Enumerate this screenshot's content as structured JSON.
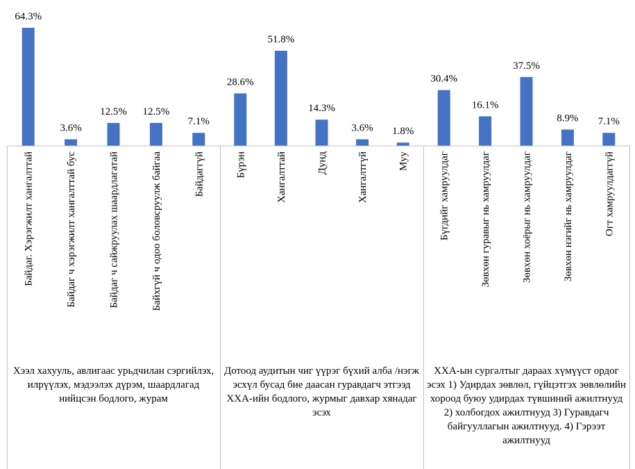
{
  "chart_data": {
    "type": "bar",
    "ylim": [
      0,
      70
    ],
    "bar_color": "#4472C4",
    "groups": [
      {
        "label": "Хээл хахууль, авлигаас урьдчилан сэргийлэх, илрүүлэх, мэдээлэх дүрэм, шаардлагад нийцсэн бодлого, журам",
        "categories": [
          "Байдаг. Хэрэгжилт хангалттай",
          "Байдаг ч хэрэгжилт хангалттай бус",
          "Байдаг ч сайжруулах шаардлагатай",
          "Байхгүй ч одоо боловсруулж байгаа",
          "Байдаггүй"
        ],
        "values": [
          64.3,
          3.6,
          12.5,
          12.5,
          7.1
        ],
        "labels": [
          "64.3%",
          "3.6%",
          "12.5%",
          "12.5%",
          "7.1%"
        ]
      },
      {
        "label": "Дотоод аудитын чиг үүрэг бүхий алба /нэгж эсхүл бусад бие даасан гуравдагч этгээд ХХА-ийн бодлого, журмыг давхар хянадаг эсэх",
        "categories": [
          "Бүрэн",
          "Хангалттай",
          "Дунд",
          "Хангалтгүй",
          "Муу"
        ],
        "values": [
          28.6,
          51.8,
          14.3,
          3.6,
          1.8
        ],
        "labels": [
          "28.6%",
          "51.8%",
          "14.3%",
          "3.6%",
          "1.8%"
        ]
      },
      {
        "label": "ХХА-ын сургалтыг дараах хүмүүст ордог эсэх 1) Удирдах зөвлөл, гүйцэтгэх зөвлөлийн хороод буюу удирдах түвшиний ажилтнууд 2) холбогдох ажилтнууд 3) Гуравдагч байгууллагын ажилтнууд. 4) Гэрээт ажилтнууд",
        "categories": [
          "Бүгдийг хамруулдаг",
          "Зөвхөн гуравыг нь хамруулдаг",
          "Зөвхөн хоёрыг нь хамруулдаг",
          "Зөвхөн нэгийг нь хамруулдаг",
          "Огт хамруулдаггүй"
        ],
        "values": [
          30.4,
          16.1,
          37.5,
          8.9,
          7.1
        ],
        "labels": [
          "30.4%",
          "16.1%",
          "37.5%",
          "8.9%",
          "7.1%"
        ]
      }
    ]
  }
}
